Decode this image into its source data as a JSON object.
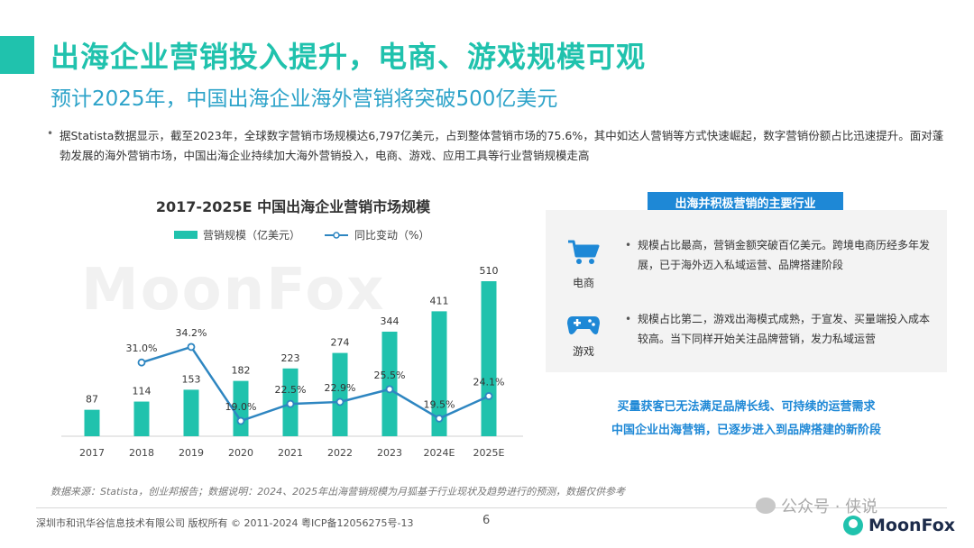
{
  "header": {
    "title": "出海企业营销投入提升，电商、游戏规模可观",
    "subtitle": "预计2025年，中国出海企业海外营销将突破500亿美元",
    "bullet": "据Statista数据显示，截至2023年，全球数字营销市场规模达6,797亿美元，占到整体营销市场的75.6%，其中如达人营销等方式快速崛起，数字营销份额占比迅速提升。面对蓬勃发展的海外营销市场，中国出海企业持续加大海外营销投入，电商、游戏、应用工具等行业营销规模走高"
  },
  "chart_data": {
    "type": "bar",
    "title": "2017-2025E 中国出海企业营销市场规模",
    "categories": [
      "2017",
      "2018",
      "2019",
      "2020",
      "2021",
      "2022",
      "2023",
      "2024E",
      "2025E"
    ],
    "series": [
      {
        "name": "营销规模（亿美元）",
        "type": "bar",
        "values": [
          87,
          114,
          153,
          182,
          223,
          274,
          344,
          411,
          510
        ],
        "labels": [
          "87",
          "114",
          "153",
          "182",
          "223",
          "274",
          "344",
          "411",
          "510"
        ],
        "color": "#20c2ad"
      },
      {
        "name": "同比变动（%）",
        "type": "line",
        "values": [
          31.0,
          34.2,
          19.0,
          22.5,
          22.9,
          25.5,
          19.5,
          24.1
        ],
        "x": [
          "2018",
          "2019",
          "2020",
          "2021",
          "2022",
          "2023",
          "2024E",
          "2025E"
        ],
        "labels": [
          "31.0%",
          "34.2%",
          "19.0%",
          "22.5%",
          "22.9%",
          "25.5%",
          "19.5%",
          "24.1%"
        ],
        "color": "#2e86c1"
      }
    ],
    "legend_position": "top",
    "grid": false
  },
  "panel": {
    "tag": "出海并积极营销的主要行业",
    "rows": [
      {
        "icon": "shopping-cart-icon",
        "label": "电商",
        "text": "规模占比最高，营销金额突破百亿美元。跨境电商历经多年发展，已于海外迈入私域运营、品牌搭建阶段"
      },
      {
        "icon": "gamepad-icon",
        "label": "游戏",
        "text": "规模占比第二，游戏出海模式成熟，于宣发、买量端投入成本较高。当下同样开始关注品牌营销，发力私域运营"
      }
    ]
  },
  "callouts": [
    "买量获客已无法满足品牌长线、可持续的运营需求",
    "中国企业出海营销，已逐步进入到品牌搭建的新阶段"
  ],
  "note": "数据来源：Statista，创业邦报告；数据说明：2024、2025年出海营销规模为月狐基于行业现状及趋势进行的预测，数据仅供参考",
  "footer": {
    "copyright": "深圳市和讯华谷信息技术有限公司 版权所有 © 2011-2024 粤ICP备12056275号-13",
    "page": "6",
    "wechat": "公众号 · 侠说",
    "brand": "MoonFox"
  },
  "watermark": "MoonFox",
  "colors": {
    "accent": "#20c2ad",
    "blue": "#1e88d6",
    "line": "#2e86c1"
  }
}
